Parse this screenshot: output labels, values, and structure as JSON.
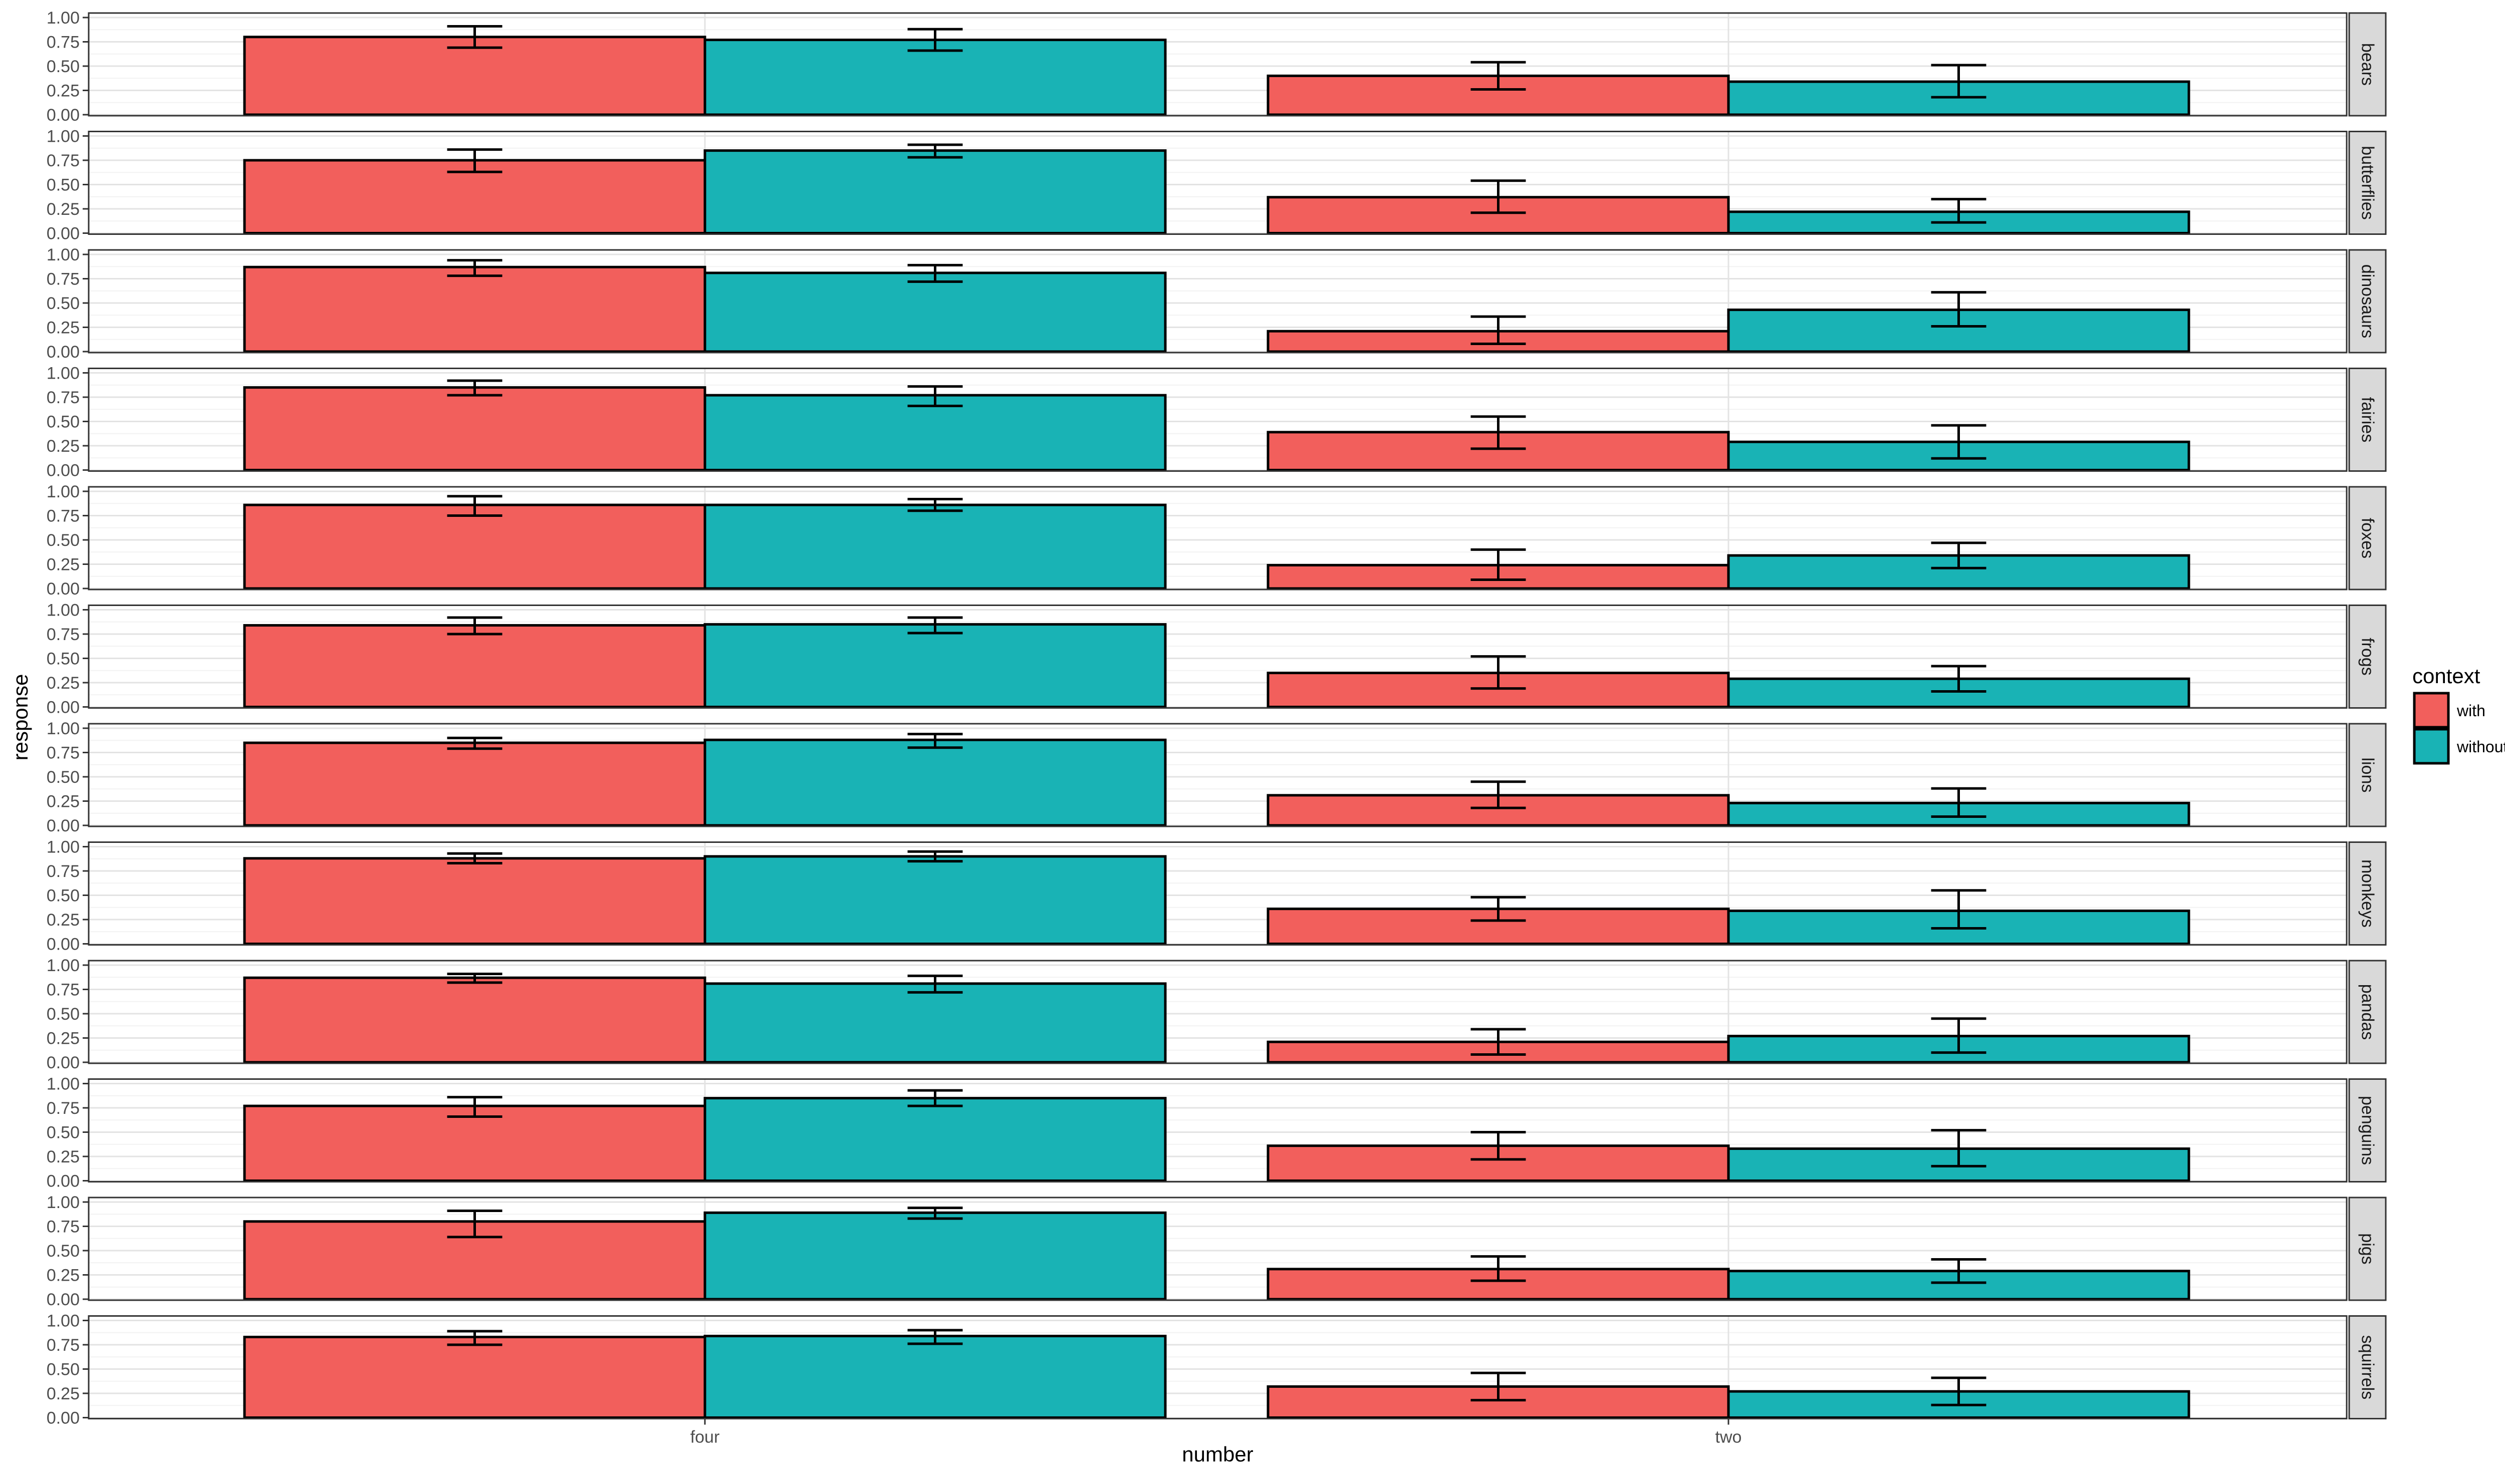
{
  "chart_data": {
    "type": "bar",
    "facet_by": "row",
    "xlabel": "number",
    "ylabel": "response",
    "categories": [
      "four",
      "two"
    ],
    "ylim": [
      0,
      1
    ],
    "yticks": [
      "0.00",
      "0.25",
      "0.50",
      "0.75",
      "1.00"
    ],
    "grid": true,
    "legend": {
      "title": "context",
      "position": "right",
      "entries": [
        {
          "name": "with",
          "color": "#F25F5C"
        },
        {
          "name": "without",
          "color": "#19B3B5"
        }
      ]
    },
    "colors": {
      "with": "#F25F5C",
      "without": "#19B3B5",
      "strip": "#D9D9D9"
    },
    "panels": [
      {
        "label": "bears",
        "series": [
          {
            "name": "with",
            "values": [
              0.8,
              0.4
            ],
            "err_low": [
              0.69,
              0.26
            ],
            "err_high": [
              0.91,
              0.54
            ]
          },
          {
            "name": "without",
            "values": [
              0.77,
              0.34
            ],
            "err_low": [
              0.66,
              0.18
            ],
            "err_high": [
              0.88,
              0.51
            ]
          }
        ]
      },
      {
        "label": "butterflies",
        "series": [
          {
            "name": "with",
            "values": [
              0.75,
              0.37
            ],
            "err_low": [
              0.63,
              0.21
            ],
            "err_high": [
              0.86,
              0.54
            ]
          },
          {
            "name": "without",
            "values": [
              0.85,
              0.22
            ],
            "err_low": [
              0.78,
              0.11
            ],
            "err_high": [
              0.91,
              0.35
            ]
          }
        ]
      },
      {
        "label": "dinosaurs",
        "series": [
          {
            "name": "with",
            "values": [
              0.87,
              0.21
            ],
            "err_low": [
              0.78,
              0.08
            ],
            "err_high": [
              0.94,
              0.36
            ]
          },
          {
            "name": "without",
            "values": [
              0.81,
              0.43
            ],
            "err_low": [
              0.72,
              0.26
            ],
            "err_high": [
              0.89,
              0.61
            ]
          }
        ]
      },
      {
        "label": "fairies",
        "series": [
          {
            "name": "with",
            "values": [
              0.85,
              0.39
            ],
            "err_low": [
              0.77,
              0.22
            ],
            "err_high": [
              0.92,
              0.55
            ]
          },
          {
            "name": "without",
            "values": [
              0.77,
              0.29
            ],
            "err_low": [
              0.66,
              0.12
            ],
            "err_high": [
              0.86,
              0.46
            ]
          }
        ]
      },
      {
        "label": "foxes",
        "series": [
          {
            "name": "with",
            "values": [
              0.86,
              0.24
            ],
            "err_low": [
              0.75,
              0.09
            ],
            "err_high": [
              0.95,
              0.4
            ]
          },
          {
            "name": "without",
            "values": [
              0.86,
              0.34
            ],
            "err_low": [
              0.8,
              0.21
            ],
            "err_high": [
              0.92,
              0.47
            ]
          }
        ]
      },
      {
        "label": "frogs",
        "series": [
          {
            "name": "with",
            "values": [
              0.84,
              0.35
            ],
            "err_low": [
              0.75,
              0.19
            ],
            "err_high": [
              0.92,
              0.52
            ]
          },
          {
            "name": "without",
            "values": [
              0.85,
              0.29
            ],
            "err_low": [
              0.76,
              0.16
            ],
            "err_high": [
              0.92,
              0.42
            ]
          }
        ]
      },
      {
        "label": "lions",
        "series": [
          {
            "name": "with",
            "values": [
              0.85,
              0.31
            ],
            "err_low": [
              0.79,
              0.18
            ],
            "err_high": [
              0.9,
              0.45
            ]
          },
          {
            "name": "without",
            "values": [
              0.88,
              0.23
            ],
            "err_low": [
              0.8,
              0.09
            ],
            "err_high": [
              0.94,
              0.38
            ]
          }
        ]
      },
      {
        "label": "monkeys",
        "series": [
          {
            "name": "with",
            "values": [
              0.88,
              0.36
            ],
            "err_low": [
              0.83,
              0.24
            ],
            "err_high": [
              0.93,
              0.48
            ]
          },
          {
            "name": "without",
            "values": [
              0.9,
              0.34
            ],
            "err_low": [
              0.85,
              0.16
            ],
            "err_high": [
              0.95,
              0.55
            ]
          }
        ]
      },
      {
        "label": "pandas",
        "series": [
          {
            "name": "with",
            "values": [
              0.87,
              0.21
            ],
            "err_low": [
              0.82,
              0.08
            ],
            "err_high": [
              0.91,
              0.34
            ]
          },
          {
            "name": "without",
            "values": [
              0.81,
              0.27
            ],
            "err_low": [
              0.72,
              0.1
            ],
            "err_high": [
              0.89,
              0.45
            ]
          }
        ]
      },
      {
        "label": "penguins",
        "series": [
          {
            "name": "with",
            "values": [
              0.77,
              0.36
            ],
            "err_low": [
              0.66,
              0.22
            ],
            "err_high": [
              0.86,
              0.5
            ]
          },
          {
            "name": "without",
            "values": [
              0.85,
              0.33
            ],
            "err_low": [
              0.77,
              0.15
            ],
            "err_high": [
              0.93,
              0.52
            ]
          }
        ]
      },
      {
        "label": "pigs",
        "series": [
          {
            "name": "with",
            "values": [
              0.8,
              0.31
            ],
            "err_low": [
              0.64,
              0.19
            ],
            "err_high": [
              0.91,
              0.44
            ]
          },
          {
            "name": "without",
            "values": [
              0.89,
              0.29
            ],
            "err_low": [
              0.83,
              0.17
            ],
            "err_high": [
              0.94,
              0.41
            ]
          }
        ]
      },
      {
        "label": "squirrels",
        "series": [
          {
            "name": "with",
            "values": [
              0.83,
              0.32
            ],
            "err_low": [
              0.75,
              0.18
            ],
            "err_high": [
              0.89,
              0.46
            ]
          },
          {
            "name": "without",
            "values": [
              0.84,
              0.27
            ],
            "err_low": [
              0.76,
              0.13
            ],
            "err_high": [
              0.9,
              0.41
            ]
          }
        ]
      }
    ]
  }
}
